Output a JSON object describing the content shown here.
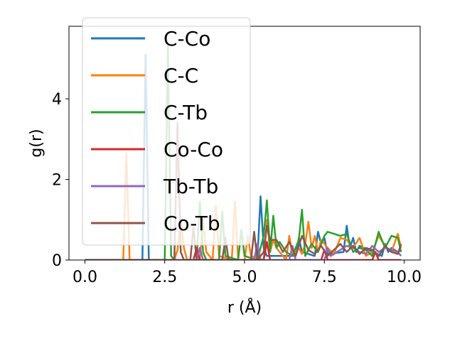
{
  "chart_data": {
    "type": "line",
    "xlabel": "r (Å)",
    "ylabel": "g(r)",
    "xlim": [
      -0.5,
      10.5
    ],
    "ylim": [
      0,
      5.8
    ],
    "xticks": [
      0.0,
      2.5,
      5.0,
      7.5,
      10.0
    ],
    "xtick_labels": [
      "0.0",
      "2.5",
      "5.0",
      "7.5",
      "10.0"
    ],
    "yticks": [
      0,
      2,
      4
    ],
    "ytick_labels": [
      "0",
      "2",
      "4"
    ],
    "grid": false,
    "legend_position": "top-left",
    "series": [
      {
        "name": "C-Co",
        "color": "#1f77b4",
        "x": [
          0,
          1.8,
          1.9,
          2.0,
          2.1,
          2.5,
          5.4,
          5.5,
          5.6,
          5.7,
          6.6,
          6.7,
          6.8,
          7.2,
          7.3,
          7.4,
          7.5,
          7.6,
          8.1,
          8.2,
          8.3,
          8.4,
          8.5,
          8.6,
          9.3,
          9.4,
          9.5,
          9.6,
          9.8,
          9.9
        ],
        "y": [
          0,
          0,
          5.1,
          0,
          0,
          0,
          0,
          1.58,
          0.3,
          0.1,
          0.1,
          0.55,
          0.2,
          0.1,
          0.7,
          0.4,
          0.55,
          0.15,
          0.2,
          0.85,
          0.3,
          0.55,
          0.2,
          0.35,
          0.1,
          0.4,
          0.2,
          0.3,
          0.2,
          0.25
        ]
      },
      {
        "name": "C-C",
        "color": "#ff7f0e",
        "x": [
          0,
          1.2,
          1.3,
          1.4,
          1.5,
          2.8,
          2.9,
          3.0,
          3.1,
          3.2,
          3.6,
          3.7,
          3.8,
          4.0,
          4.1,
          4.2,
          4.6,
          4.7,
          4.8,
          5.0,
          5.1,
          5.2,
          5.6,
          5.7,
          5.8,
          5.9,
          6.0,
          6.3,
          6.4,
          6.5,
          6.6,
          6.7,
          6.8,
          6.9,
          7.0,
          7.1,
          7.2,
          7.3,
          7.4,
          7.6,
          7.8,
          8.0,
          8.2,
          8.4,
          8.6,
          8.8,
          9.0,
          9.2,
          9.4,
          9.6,
          9.8,
          9.9
        ],
        "y": [
          0,
          0,
          2.65,
          0,
          0,
          0,
          0.25,
          1.05,
          0.3,
          0,
          0,
          1.0,
          0.2,
          0,
          1.35,
          0.1,
          0,
          1.45,
          0,
          0,
          0.6,
          0.1,
          0,
          1.0,
          0.2,
          0.5,
          0.3,
          0,
          0.6,
          0.1,
          0.2,
          0.3,
          0.15,
          0.4,
          0.95,
          0.3,
          0.6,
          0.2,
          0.5,
          0.3,
          0.15,
          0.55,
          0.5,
          0.3,
          0.55,
          0.1,
          0.2,
          0.6,
          0.35,
          0.2,
          0.65,
          0.3
        ]
      },
      {
        "name": "C-Tb",
        "color": "#2ca02c",
        "x": [
          0,
          2.5,
          2.6,
          2.7,
          2.8,
          3.5,
          3.6,
          3.7,
          3.8,
          4.2,
          4.3,
          4.4,
          4.8,
          4.9,
          5.0,
          5.4,
          5.5,
          5.6,
          5.7,
          5.8,
          5.9,
          6.0,
          6.1,
          6.3,
          6.5,
          6.7,
          6.8,
          6.9,
          7.1,
          7.3,
          7.5,
          7.6,
          7.8,
          8.0,
          8.2,
          8.4,
          8.6,
          8.8,
          9.0,
          9.2,
          9.4,
          9.6,
          9.8,
          9.9
        ],
        "y": [
          0,
          0,
          5.3,
          0.1,
          0,
          0,
          1.45,
          0.2,
          0,
          0,
          1.2,
          0.1,
          0,
          0.75,
          0.1,
          0,
          0.3,
          0.6,
          1.48,
          0.2,
          1.1,
          0.3,
          0.45,
          0.2,
          0.1,
          0.5,
          1.25,
          0.1,
          0.4,
          0.2,
          0.6,
          0.7,
          0.65,
          0.6,
          0.65,
          0.2,
          0.3,
          0.25,
          0.1,
          0.7,
          0.3,
          0.6,
          0.55,
          0.2
        ]
      },
      {
        "name": "Co-Co",
        "color": "#d62728",
        "x": [
          0,
          3.4,
          3.5,
          3.6,
          5.6,
          5.7,
          5.8,
          7.4,
          7.5,
          7.6,
          9.0,
          9.1,
          9.2,
          9.9
        ],
        "y": [
          0,
          0,
          0.3,
          0,
          0,
          0.45,
          0,
          0,
          0.25,
          0,
          0,
          0.2,
          0,
          0
        ]
      },
      {
        "name": "Tb-Tb",
        "color": "#9467bd",
        "x": [
          0,
          3.5,
          3.6,
          3.7,
          5.3,
          5.4,
          5.5,
          6.4,
          6.5,
          6.6,
          7.5,
          7.6,
          7.7,
          8.0,
          8.2,
          8.4,
          8.6,
          8.8,
          9.0,
          9.2,
          9.4,
          9.6,
          9.8,
          9.9
        ],
        "y": [
          0,
          0,
          0.3,
          0,
          0,
          0.4,
          0,
          0,
          0.35,
          0,
          0,
          0.3,
          0.1,
          0.25,
          0.35,
          0.3,
          0.2,
          0.15,
          0.35,
          0.2,
          0.3,
          0.25,
          0.2,
          0.1
        ]
      },
      {
        "name": "Co-Tb",
        "color": "#8c564b",
        "x": [
          0,
          2.8,
          2.9,
          3.0,
          3.1,
          3.3,
          3.4,
          3.5,
          4.3,
          4.4,
          4.5,
          5.2,
          5.3,
          5.4,
          5.6,
          5.7,
          5.8,
          6.0,
          6.2,
          6.4,
          6.6,
          6.8,
          7.0,
          7.2,
          7.4,
          7.6,
          7.8,
          8.0,
          8.2,
          8.4,
          8.6,
          8.8,
          9.0,
          9.2,
          9.4,
          9.6,
          9.8,
          9.9
        ],
        "y": [
          0,
          0,
          3.4,
          0.2,
          0,
          0,
          0.8,
          0,
          0,
          0.55,
          0,
          0,
          0.7,
          0,
          0.2,
          0.85,
          0.5,
          0.5,
          0.2,
          0.45,
          0.1,
          0.6,
          0.25,
          0.15,
          0.35,
          0.1,
          0.25,
          0.4,
          0.2,
          0.35,
          0.15,
          0.3,
          0.25,
          0.1,
          0.35,
          0.2,
          0.15,
          0.4
        ]
      }
    ]
  }
}
